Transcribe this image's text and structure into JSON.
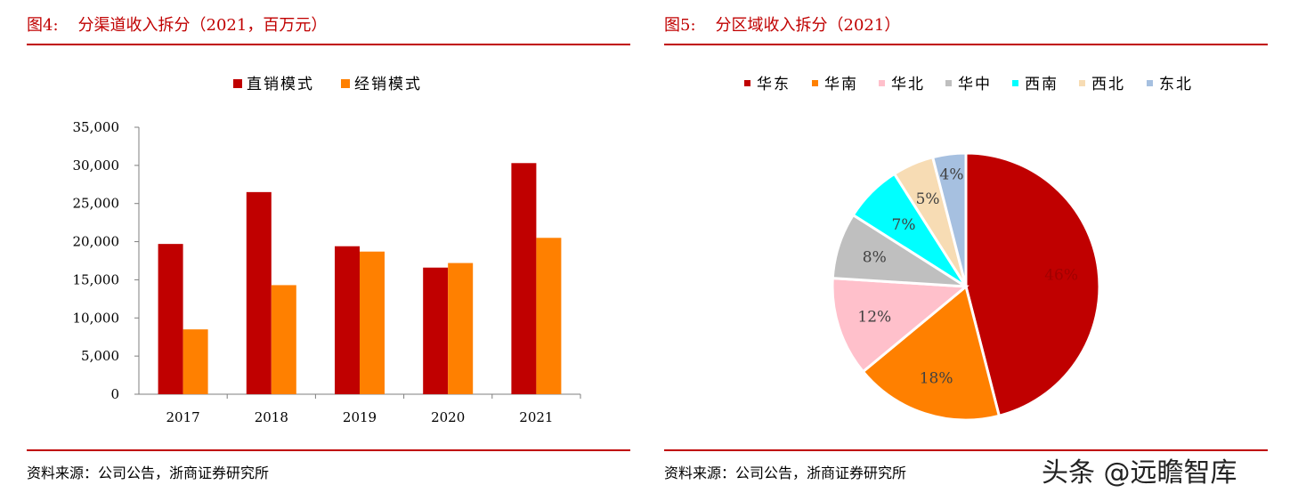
{
  "left": {
    "title_num": "图4:",
    "title_text": "分渠道收入拆分（2021，百万元）",
    "source": "资料来源：公司公告，浙商证券研究所"
  },
  "right": {
    "title_num": "图5:",
    "title_text": "分区域收入拆分（2021）",
    "source": "资料来源：公司公告，浙商证券研究所"
  },
  "watermark": "头条 @远瞻智库",
  "colors": {
    "title_red": "#c00000",
    "direct": "#c00000",
    "distribution": "#ff8000"
  },
  "chart_data": [
    {
      "type": "bar",
      "categories": [
        "2017",
        "2018",
        "2019",
        "2020",
        "2021"
      ],
      "series": [
        {
          "name": "直销模式",
          "color": "#c00000",
          "values": [
            19700,
            26500,
            19400,
            16600,
            30300
          ]
        },
        {
          "name": "经销模式",
          "color": "#ff8000",
          "values": [
            8500,
            14300,
            18700,
            17200,
            20500
          ]
        }
      ],
      "ylim": [
        0,
        35000
      ],
      "yticks": [
        0,
        5000,
        10000,
        15000,
        20000,
        25000,
        30000,
        35000
      ],
      "ytick_labels": [
        "0",
        "5,000",
        "10,000",
        "15,000",
        "20,000",
        "25,000",
        "30,000",
        "35,000"
      ],
      "legend": "top-center",
      "grid": false
    },
    {
      "type": "pie",
      "labels": [
        "华东",
        "华南",
        "华北",
        "华中",
        "西南",
        "西北",
        "东北"
      ],
      "values": [
        46,
        18,
        12,
        8,
        7,
        5,
        4
      ],
      "value_labels": [
        "46%",
        "18%",
        "12%",
        "8%",
        "7%",
        "5%",
        "4%"
      ],
      "colors": [
        "#c00000",
        "#ff8000",
        "#ffc0cb",
        "#bfbfbf",
        "#00ffff",
        "#f7dcb4",
        "#a6c0e0"
      ],
      "legend": "top-center"
    }
  ]
}
